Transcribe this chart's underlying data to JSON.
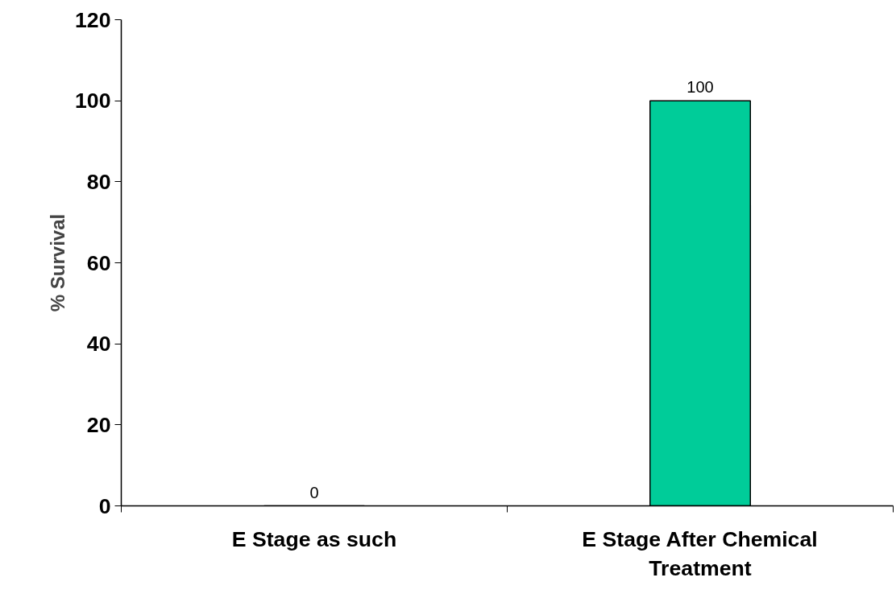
{
  "chart_data": {
    "type": "bar",
    "ylabel": "% Survival",
    "categories": [
      "E Stage as such",
      "E Stage After Chemical Treatment"
    ],
    "values": [
      0,
      100
    ],
    "color": "#00cc99",
    "ylim": [
      0,
      120
    ],
    "yticks": [
      0,
      20,
      40,
      60,
      80,
      100,
      120
    ],
    "grid": false,
    "data_labels": true
  }
}
